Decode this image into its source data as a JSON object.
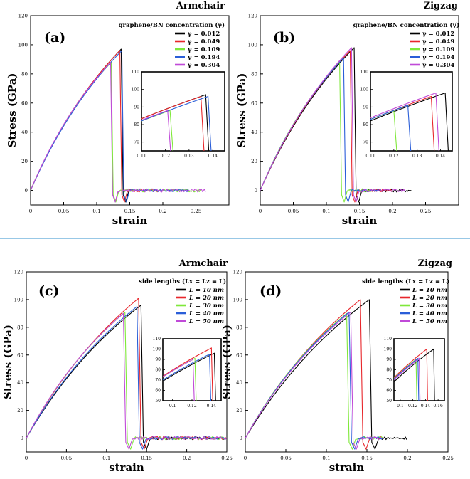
{
  "colors": {
    "black": "#000000",
    "red": "#e8262b",
    "green": "#7fe83a",
    "blue": "#2a5ed8",
    "purple": "#c04ad8",
    "divider": "#5aa6d6"
  },
  "chart_data": [
    {
      "panel": "(a)",
      "type": "line",
      "direction": "Armchair",
      "ylabel": "Stress (GPa)",
      "xlabel": "strain",
      "xlim": [
        0,
        0.3
      ],
      "ylim": [
        -10,
        120
      ],
      "xticks": [
        "0",
        "0.05",
        "0.1",
        "0.15",
        "0.2",
        "0.25"
      ],
      "yticks": [
        "0",
        "20",
        "40",
        "60",
        "80",
        "100",
        "120"
      ],
      "legend_title": "graphene/BN concentration (γ)",
      "series": [
        {
          "name": "γ = 0.012",
          "color": "#000000",
          "fracture_strain": 0.137,
          "peak_stress": 97,
          "end_strain": 0.14
        },
        {
          "name": "γ = 0.049",
          "color": "#e8262b",
          "fracture_strain": 0.135,
          "peak_stress": 96,
          "end_strain": 0.2
        },
        {
          "name": "γ = 0.109",
          "color": "#7fe83a",
          "fracture_strain": 0.122,
          "peak_stress": 88,
          "end_strain": 0.26
        },
        {
          "name": "γ = 0.194",
          "color": "#2a5ed8",
          "fracture_strain": 0.138,
          "peak_stress": 96,
          "end_strain": 0.24
        },
        {
          "name": "γ = 0.304",
          "color": "#c04ad8",
          "fracture_strain": 0.121,
          "peak_stress": 88,
          "end_strain": 0.265
        }
      ],
      "inset": {
        "xlim": [
          0.11,
          0.145
        ],
        "ylim": [
          65,
          110
        ],
        "xticks": [
          "0.11",
          "0.12",
          "0.13",
          "0.14"
        ],
        "yticks": [
          "70",
          "80",
          "90",
          "100",
          "110"
        ]
      }
    },
    {
      "panel": "(b)",
      "type": "line",
      "direction": "Zigzag",
      "ylabel": "Stress (GPa)",
      "xlabel": "strain",
      "xlim": [
        0,
        0.3
      ],
      "ylim": [
        -10,
        120
      ],
      "xticks": [
        "0",
        "0.05",
        "0.1",
        "0.15",
        "0.2",
        "0.25"
      ],
      "yticks": [
        "0",
        "20",
        "40",
        "60",
        "80",
        "100",
        "120"
      ],
      "legend_title": "graphene/BN concentration (γ)",
      "series": [
        {
          "name": "γ = 0.012",
          "color": "#000000",
          "fracture_strain": 0.142,
          "peak_stress": 98,
          "end_strain": 0.23
        },
        {
          "name": "γ = 0.049",
          "color": "#e8262b",
          "fracture_strain": 0.136,
          "peak_stress": 96,
          "end_strain": 0.2
        },
        {
          "name": "γ = 0.109",
          "color": "#7fe83a",
          "fracture_strain": 0.12,
          "peak_stress": 88,
          "end_strain": 0.17
        },
        {
          "name": "γ = 0.194",
          "color": "#2a5ed8",
          "fracture_strain": 0.126,
          "peak_stress": 91,
          "end_strain": 0.18
        },
        {
          "name": "γ = 0.304",
          "color": "#c04ad8",
          "fracture_strain": 0.138,
          "peak_stress": 98,
          "end_strain": 0.22
        }
      ],
      "inset": {
        "xlim": [
          0.11,
          0.145
        ],
        "ylim": [
          65,
          110
        ],
        "xticks": [
          "0.11",
          "0.12",
          "0.13",
          "0.14"
        ],
        "yticks": [
          "70",
          "80",
          "90",
          "100",
          "110"
        ]
      }
    },
    {
      "panel": "(c)",
      "type": "line",
      "direction": "Armchair",
      "ylabel": "Stress (GPa)",
      "xlabel": "strain",
      "xlim": [
        0,
        0.25
      ],
      "ylim": [
        -10,
        120
      ],
      "xticks": [
        "0",
        "0.05",
        "0.1",
        "0.15",
        "0.2",
        "0.25"
      ],
      "yticks": [
        "0",
        "20",
        "40",
        "60",
        "80",
        "100",
        "120"
      ],
      "legend_title": "side lengths (Lx = Lz ≡ L)",
      "series": [
        {
          "name": "L = 10 nm",
          "color": "#000000",
          "fracture_strain": 0.143,
          "peak_stress": 96,
          "end_strain": 0.25
        },
        {
          "name": "L = 20 nm",
          "color": "#e8262b",
          "fracture_strain": 0.14,
          "peak_stress": 101,
          "end_strain": 0.25
        },
        {
          "name": "L = 30 nm",
          "color": "#7fe83a",
          "fracture_strain": 0.123,
          "peak_stress": 91,
          "end_strain": 0.25
        },
        {
          "name": "L = 40 nm",
          "color": "#2a5ed8",
          "fracture_strain": 0.138,
          "peak_stress": 95,
          "end_strain": 0.25
        },
        {
          "name": "L = 50 nm",
          "color": "#c04ad8",
          "fracture_strain": 0.121,
          "peak_stress": 90,
          "end_strain": 0.25
        }
      ],
      "inset": {
        "xlim": [
          0.09,
          0.15
        ],
        "ylim": [
          50,
          110
        ],
        "xticks": [
          "0.1",
          "0.12",
          "0.14"
        ],
        "yticks": [
          "50",
          "60",
          "70",
          "80",
          "90",
          "100",
          "110"
        ]
      }
    },
    {
      "panel": "(d)",
      "type": "line",
      "direction": "Zigzag",
      "ylabel": "Stress (GPa)",
      "xlabel": "strain",
      "xlim": [
        0,
        0.25
      ],
      "ylim": [
        -10,
        120
      ],
      "xticks": [
        "0",
        "0.05",
        "0.1",
        "0.15",
        "0.2",
        "0.25"
      ],
      "yticks": [
        "0",
        "20",
        "40",
        "60",
        "80",
        "100",
        "120"
      ],
      "legend_title": "side lengths (Lx = Lz ≡ L)",
      "series": [
        {
          "name": "L = 10 nm",
          "color": "#000000",
          "fracture_strain": 0.153,
          "peak_stress": 100,
          "end_strain": 0.2
        },
        {
          "name": "L = 20 nm",
          "color": "#e8262b",
          "fracture_strain": 0.142,
          "peak_stress": 100,
          "end_strain": 0.17
        },
        {
          "name": "L = 30 nm",
          "color": "#7fe83a",
          "fracture_strain": 0.125,
          "peak_stress": 90,
          "end_strain": 0.17
        },
        {
          "name": "L = 40 nm",
          "color": "#2a5ed8",
          "fracture_strain": 0.128,
          "peak_stress": 91,
          "end_strain": 0.17
        },
        {
          "name": "L = 50 nm",
          "color": "#c04ad8",
          "fracture_strain": 0.13,
          "peak_stress": 91,
          "end_strain": 0.17
        }
      ],
      "inset": {
        "xlim": [
          0.09,
          0.17
        ],
        "ylim": [
          50,
          110
        ],
        "xticks": [
          "0.1",
          "0.12",
          "0.14",
          "0.16"
        ],
        "yticks": [
          "50",
          "60",
          "70",
          "80",
          "90",
          "100",
          "110"
        ]
      }
    }
  ]
}
